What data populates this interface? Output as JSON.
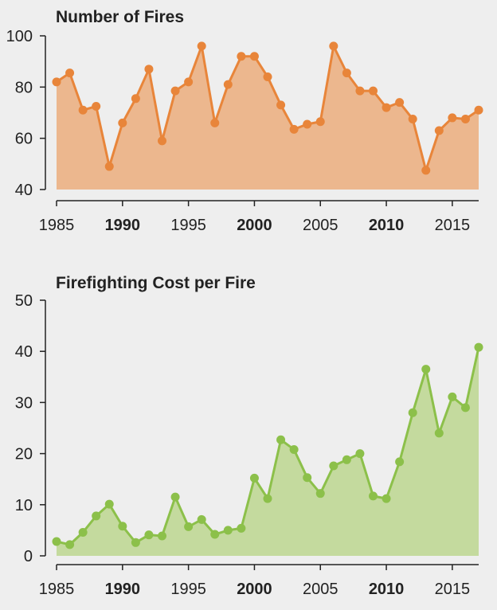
{
  "chart_data": [
    {
      "type": "area",
      "title": "Number of Fires",
      "xlabel": "",
      "ylabel": "",
      "xlim": [
        1985,
        2017
      ],
      "ylim": [
        40,
        100
      ],
      "xticks": [
        "1985",
        "1990",
        "1995",
        "2000",
        "2005",
        "2010",
        "2015"
      ],
      "xticks_bold": [
        "1990",
        "2000",
        "2010"
      ],
      "yticks": [
        "40",
        "60",
        "80",
        "100"
      ],
      "colors": {
        "line": "#e8853a",
        "fill": "#ecb78e"
      },
      "x": [
        1985,
        1986,
        1987,
        1988,
        1989,
        1990,
        1991,
        1992,
        1993,
        1994,
        1995,
        1996,
        1997,
        1998,
        1999,
        2000,
        2001,
        2002,
        2003,
        2004,
        2005,
        2006,
        2007,
        2008,
        2009,
        2010,
        2011,
        2012,
        2013,
        2014,
        2015,
        2016,
        2017
      ],
      "values": [
        82,
        85.5,
        71,
        72.5,
        49,
        66,
        75.5,
        87,
        59,
        78.5,
        82,
        96,
        66,
        81,
        92,
        92,
        84,
        73,
        63.5,
        65.5,
        66.5,
        96,
        85.5,
        78.5,
        78.5,
        72,
        74,
        67.5,
        47.5,
        63,
        68,
        67.5,
        71
      ]
    },
    {
      "type": "area",
      "title": "Firefighting Cost per Fire",
      "xlabel": "",
      "ylabel": "",
      "xlim": [
        1985,
        2017
      ],
      "ylim": [
        0,
        50
      ],
      "xticks": [
        "1985",
        "1990",
        "1995",
        "2000",
        "2005",
        "2010",
        "2015"
      ],
      "xticks_bold": [
        "1990",
        "2000",
        "2010"
      ],
      "yticks": [
        "0",
        "10",
        "20",
        "30",
        "40",
        "50"
      ],
      "colors": {
        "line": "#8cc04a",
        "fill": "#c4da9e"
      },
      "x": [
        1985,
        1986,
        1987,
        1988,
        1989,
        1990,
        1991,
        1992,
        1993,
        1994,
        1995,
        1996,
        1997,
        1998,
        1999,
        2000,
        2001,
        2002,
        2003,
        2004,
        2005,
        2006,
        2007,
        2008,
        2009,
        2010,
        2011,
        2012,
        2013,
        2014,
        2015,
        2016,
        2017
      ],
      "values": [
        2.8,
        2.2,
        4.6,
        7.8,
        10.1,
        5.8,
        2.6,
        4.1,
        3.9,
        11.5,
        5.7,
        7.1,
        4.2,
        5,
        5.4,
        15.2,
        11.2,
        22.7,
        20.8,
        15.3,
        12.2,
        17.6,
        18.8,
        20,
        11.7,
        11.2,
        18.4,
        28,
        36.5,
        24,
        31.1,
        29,
        40.8
      ]
    }
  ]
}
